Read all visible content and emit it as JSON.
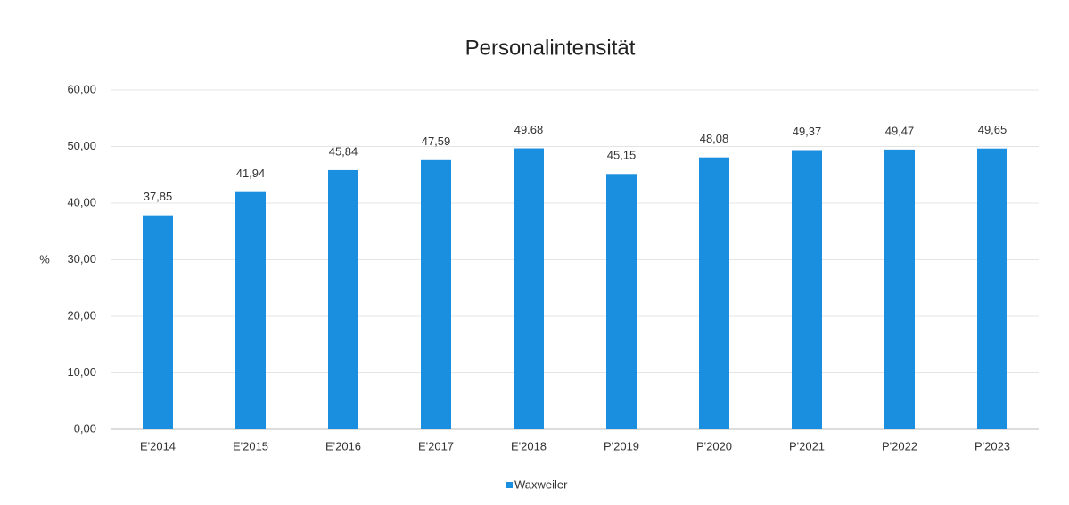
{
  "chart_data": {
    "type": "bar",
    "title": "Personalintensität",
    "y_label": "%",
    "categories": [
      "E'2014",
      "E'2015",
      "E'2016",
      "E'2017",
      "E'2018",
      "P'2019",
      "P'2020",
      "P'2021",
      "P'2022",
      "P'2023"
    ],
    "series": [
      {
        "name": "Waxweiler",
        "color": "#1a8fe0",
        "values": [
          37.85,
          41.94,
          45.84,
          47.59,
          49.68,
          45.15,
          48.08,
          49.37,
          49.47,
          49.65
        ],
        "value_labels": [
          "37,85",
          "41,94",
          "45,84",
          "47,59",
          "49.68",
          "45,15",
          "48,08",
          "49,37",
          "49,47",
          "49,65"
        ]
      }
    ],
    "ylim": [
      0,
      60
    ],
    "yticks": [
      {
        "value": 0,
        "label": "0,00"
      },
      {
        "value": 10,
        "label": "10,00"
      },
      {
        "value": 20,
        "label": "20,00"
      },
      {
        "value": 30,
        "label": "30,00"
      },
      {
        "value": 40,
        "label": "40,00"
      },
      {
        "value": 50,
        "label": "50,00"
      },
      {
        "value": 60,
        "label": "60,00"
      }
    ],
    "grid": true,
    "legend": "bottom"
  }
}
